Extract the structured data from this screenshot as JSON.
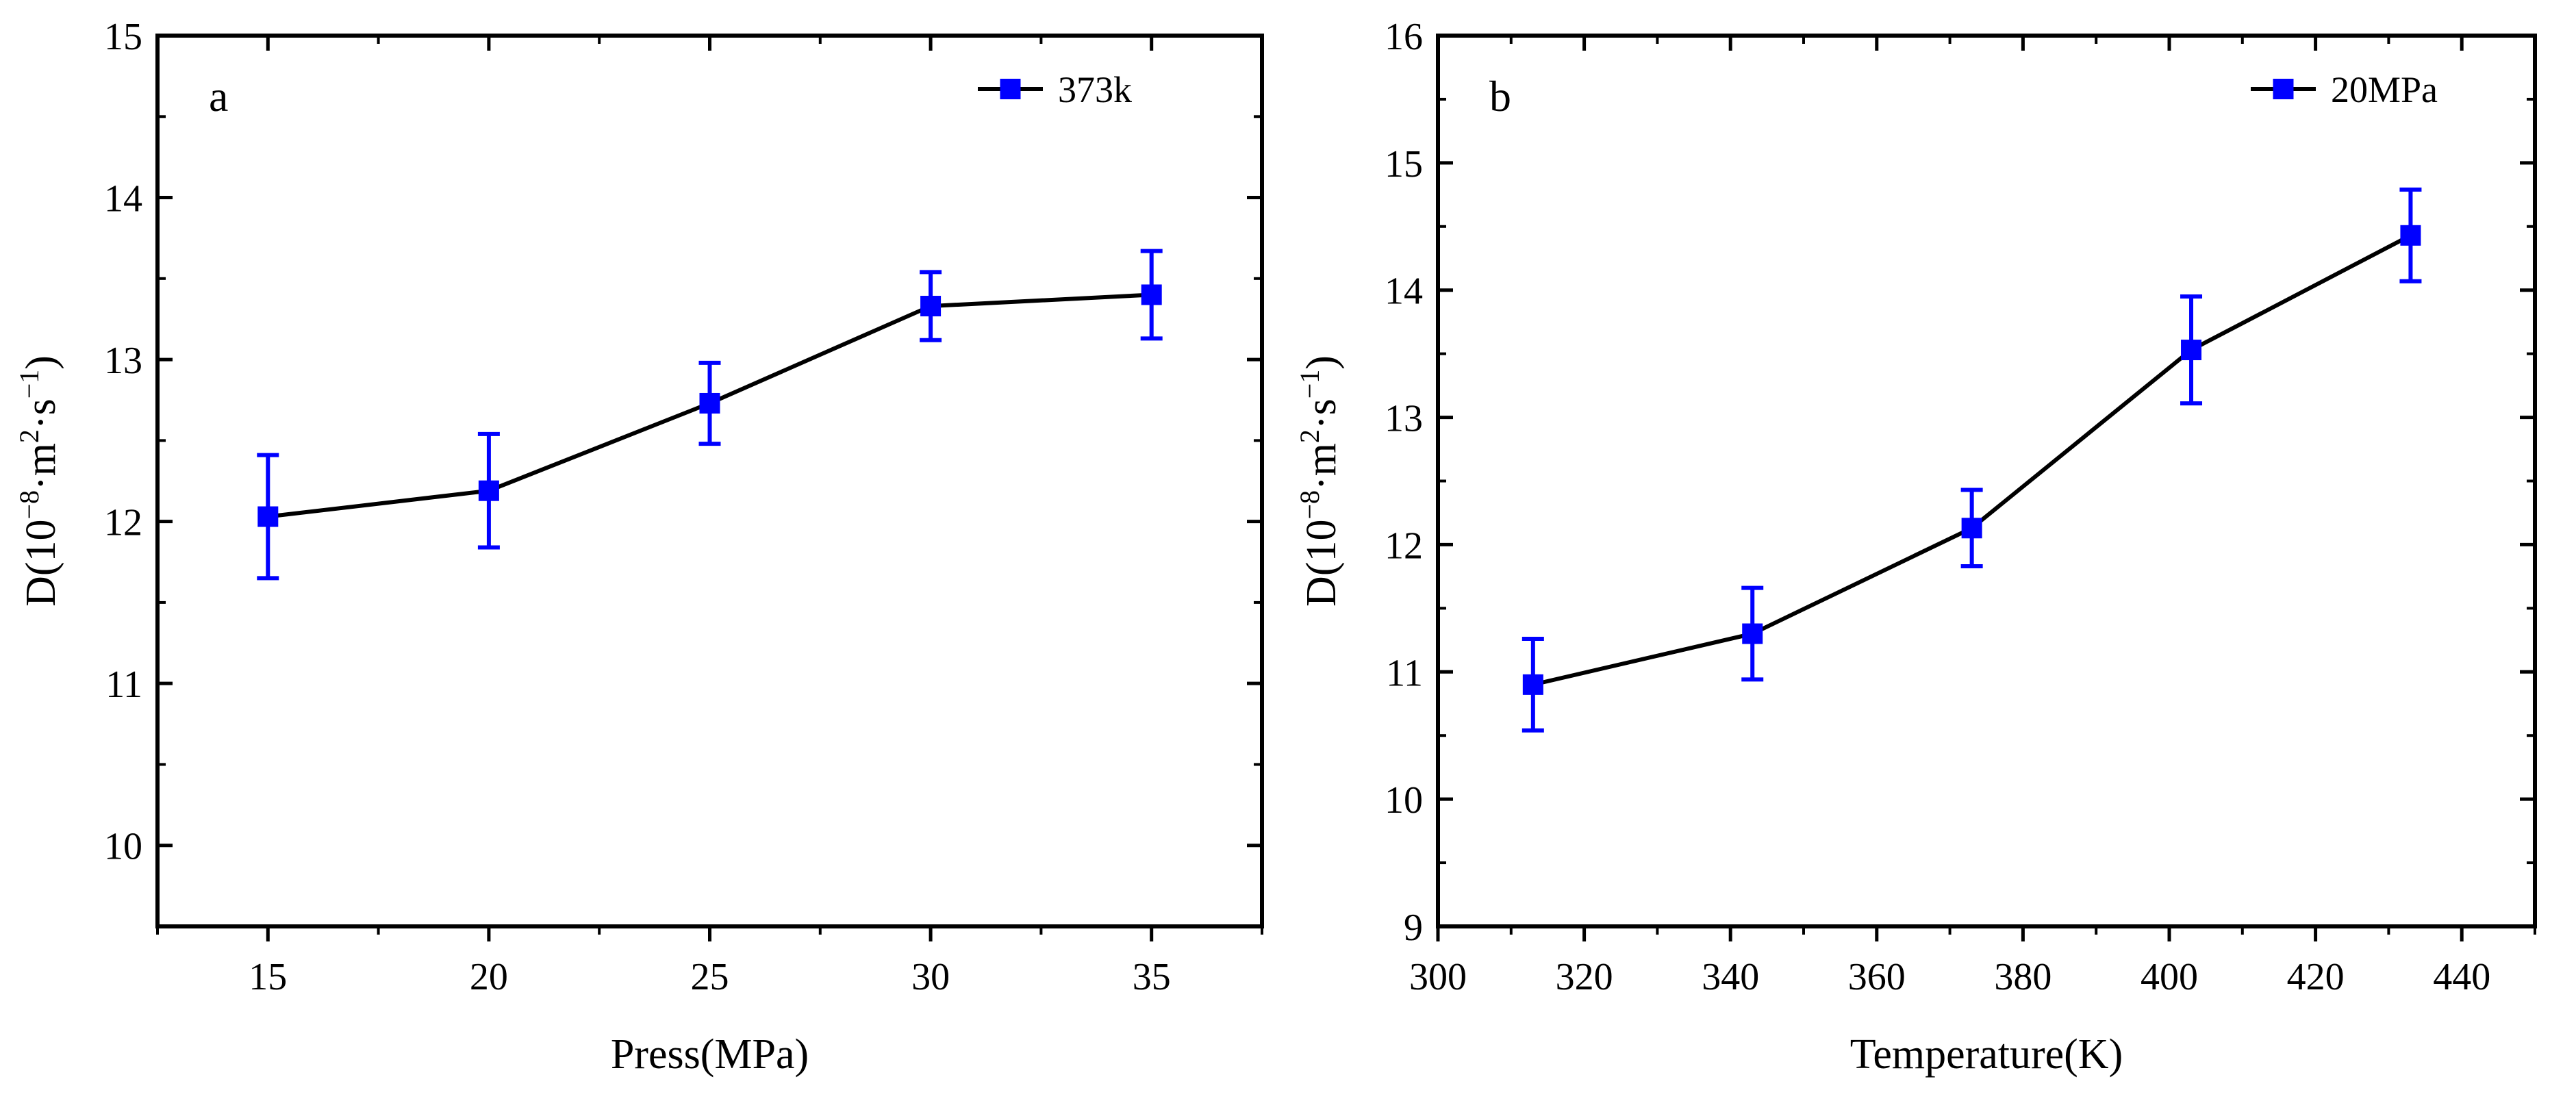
{
  "chart_data": [
    {
      "type": "line",
      "panel_label": "a",
      "xlabel": "Press(MPa)",
      "ylabel_parts": {
        "prefix": "D(10",
        "exp1": "−8",
        "mid": "·m",
        "exp2": "2",
        "mid2": "·s",
        "exp3": "−1",
        "suffix": ")"
      },
      "xlim": [
        12.5,
        37.5
      ],
      "ylim": [
        9.5,
        15
      ],
      "xticks": [
        15,
        20,
        25,
        30,
        35
      ],
      "xtick_labels": [
        "15",
        "20",
        "25",
        "30",
        "35"
      ],
      "yticks": [
        10,
        11,
        12,
        13,
        14,
        15
      ],
      "ytick_labels": [
        "10",
        "11",
        "12",
        "13",
        "14",
        "15"
      ],
      "legend": "top-right",
      "series": [
        {
          "name": "373k",
          "color": "#0000ff",
          "line_color": "#000000",
          "x": [
            15,
            20,
            25,
            30,
            35
          ],
          "y": [
            12.03,
            12.19,
            12.73,
            13.33,
            13.4
          ],
          "err": [
            0.38,
            0.35,
            0.25,
            0.21,
            0.27
          ]
        }
      ]
    },
    {
      "type": "line",
      "panel_label": "b",
      "xlabel": "Temperature(K)",
      "ylabel_parts": {
        "prefix": "D(10",
        "exp1": "−8",
        "mid": "·m",
        "exp2": "2",
        "mid2": "·s",
        "exp3": "−1",
        "suffix": ")"
      },
      "xlim": [
        300,
        450
      ],
      "ylim": [
        9,
        16
      ],
      "xticks": [
        300,
        320,
        340,
        360,
        380,
        400,
        420,
        440
      ],
      "xtick_labels": [
        "300",
        "320",
        "340",
        "360",
        "380",
        "400",
        "420",
        "440"
      ],
      "yticks": [
        9,
        10,
        11,
        12,
        13,
        14,
        15,
        16
      ],
      "ytick_labels": [
        "9",
        "10",
        "11",
        "12",
        "13",
        "14",
        "15",
        "16"
      ],
      "legend": "top-right",
      "series": [
        {
          "name": "20MPa",
          "color": "#0000ff",
          "line_color": "#000000",
          "x": [
            313,
            343,
            373,
            403,
            433
          ],
          "y": [
            10.9,
            11.3,
            12.13,
            13.53,
            14.43
          ],
          "err": [
            0.36,
            0.36,
            0.3,
            0.42,
            0.36
          ]
        }
      ]
    }
  ]
}
